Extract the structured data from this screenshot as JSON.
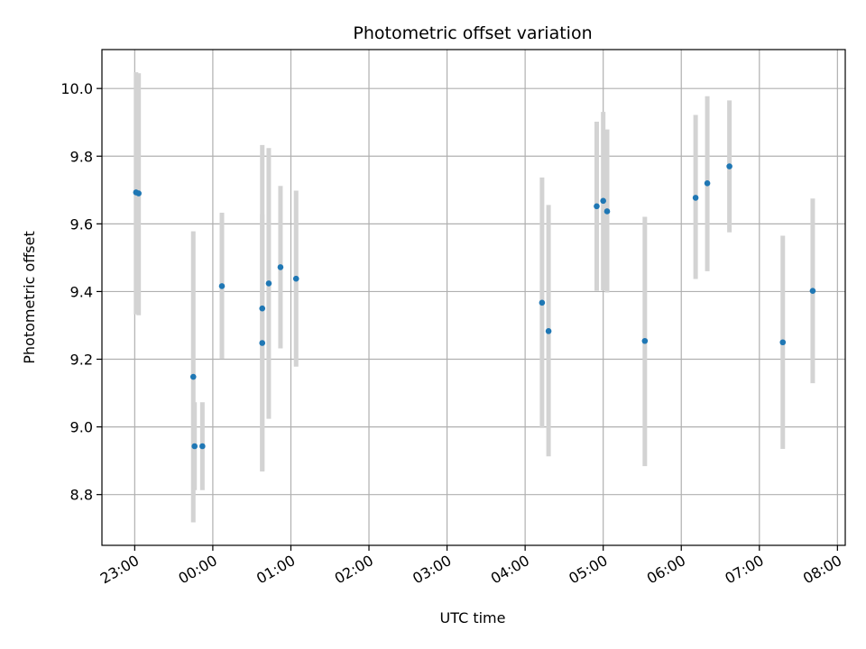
{
  "chart_data": {
    "type": "scatter",
    "title": "Photometric offset variation",
    "xlabel": "UTC time",
    "ylabel": "Photometric offset",
    "x_ticks": [
      "23:00",
      "00:00",
      "01:00",
      "02:00",
      "03:00",
      "04:00",
      "05:00",
      "06:00",
      "07:00",
      "08:00"
    ],
    "y_ticks": [
      "8.8",
      "9.0",
      "9.2",
      "9.4",
      "9.6",
      "9.8",
      "10.0"
    ],
    "xlim_hours": [
      22.58,
      32.1
    ],
    "ylim": [
      8.65,
      10.115
    ],
    "grid": true,
    "colors": {
      "point": "#1f77b4",
      "errorbar": "#d3d3d3",
      "grid": "#b0b0b0"
    },
    "points": [
      {
        "time": "23:01",
        "y": 9.693,
        "yerr_low": 0.36,
        "yerr_high": 0.355
      },
      {
        "time": "23:03",
        "y": 9.69,
        "yerr_low": 0.36,
        "yerr_high": 0.355
      },
      {
        "time": "23:45",
        "y": 9.148,
        "yerr_low": 0.43,
        "yerr_high": 0.43
      },
      {
        "time": "23:46",
        "y": 8.943,
        "yerr_low": 0.13,
        "yerr_high": 0.13
      },
      {
        "time": "23:52",
        "y": 8.943,
        "yerr_low": 0.13,
        "yerr_high": 0.13
      },
      {
        "time": "00:07",
        "y": 9.416,
        "yerr_low": 0.215,
        "yerr_high": 0.217
      },
      {
        "time": "00:38",
        "y": 9.35,
        "yerr_low": 0.48,
        "yerr_high": 0.483
      },
      {
        "time": "00:38",
        "y": 9.248,
        "yerr_low": 0.38,
        "yerr_high": 0.38
      },
      {
        "time": "00:43",
        "y": 9.424,
        "yerr_low": 0.4,
        "yerr_high": 0.4
      },
      {
        "time": "00:52",
        "y": 9.472,
        "yerr_low": 0.24,
        "yerr_high": 0.24
      },
      {
        "time": "01:04",
        "y": 9.438,
        "yerr_low": 0.26,
        "yerr_high": 0.26
      },
      {
        "time": "04:13",
        "y": 9.367,
        "yerr_low": 0.37,
        "yerr_high": 0.37
      },
      {
        "time": "04:18",
        "y": 9.283,
        "yerr_low": 0.37,
        "yerr_high": 0.373
      },
      {
        "time": "04:55",
        "y": 9.652,
        "yerr_low": 0.25,
        "yerr_high": 0.25
      },
      {
        "time": "05:00",
        "y": 9.668,
        "yerr_low": 0.265,
        "yerr_high": 0.263
      },
      {
        "time": "05:03",
        "y": 9.637,
        "yerr_low": 0.24,
        "yerr_high": 0.242
      },
      {
        "time": "05:32",
        "y": 9.254,
        "yerr_low": 0.37,
        "yerr_high": 0.367
      },
      {
        "time": "06:11",
        "y": 9.677,
        "yerr_low": 0.24,
        "yerr_high": 0.245
      },
      {
        "time": "06:20",
        "y": 9.72,
        "yerr_low": 0.26,
        "yerr_high": 0.257
      },
      {
        "time": "06:37",
        "y": 9.77,
        "yerr_low": 0.195,
        "yerr_high": 0.195
      },
      {
        "time": "07:18",
        "y": 9.25,
        "yerr_low": 0.315,
        "yerr_high": 0.315
      },
      {
        "time": "07:41",
        "y": 9.402,
        "yerr_low": 0.273,
        "yerr_high": 0.273
      }
    ]
  }
}
